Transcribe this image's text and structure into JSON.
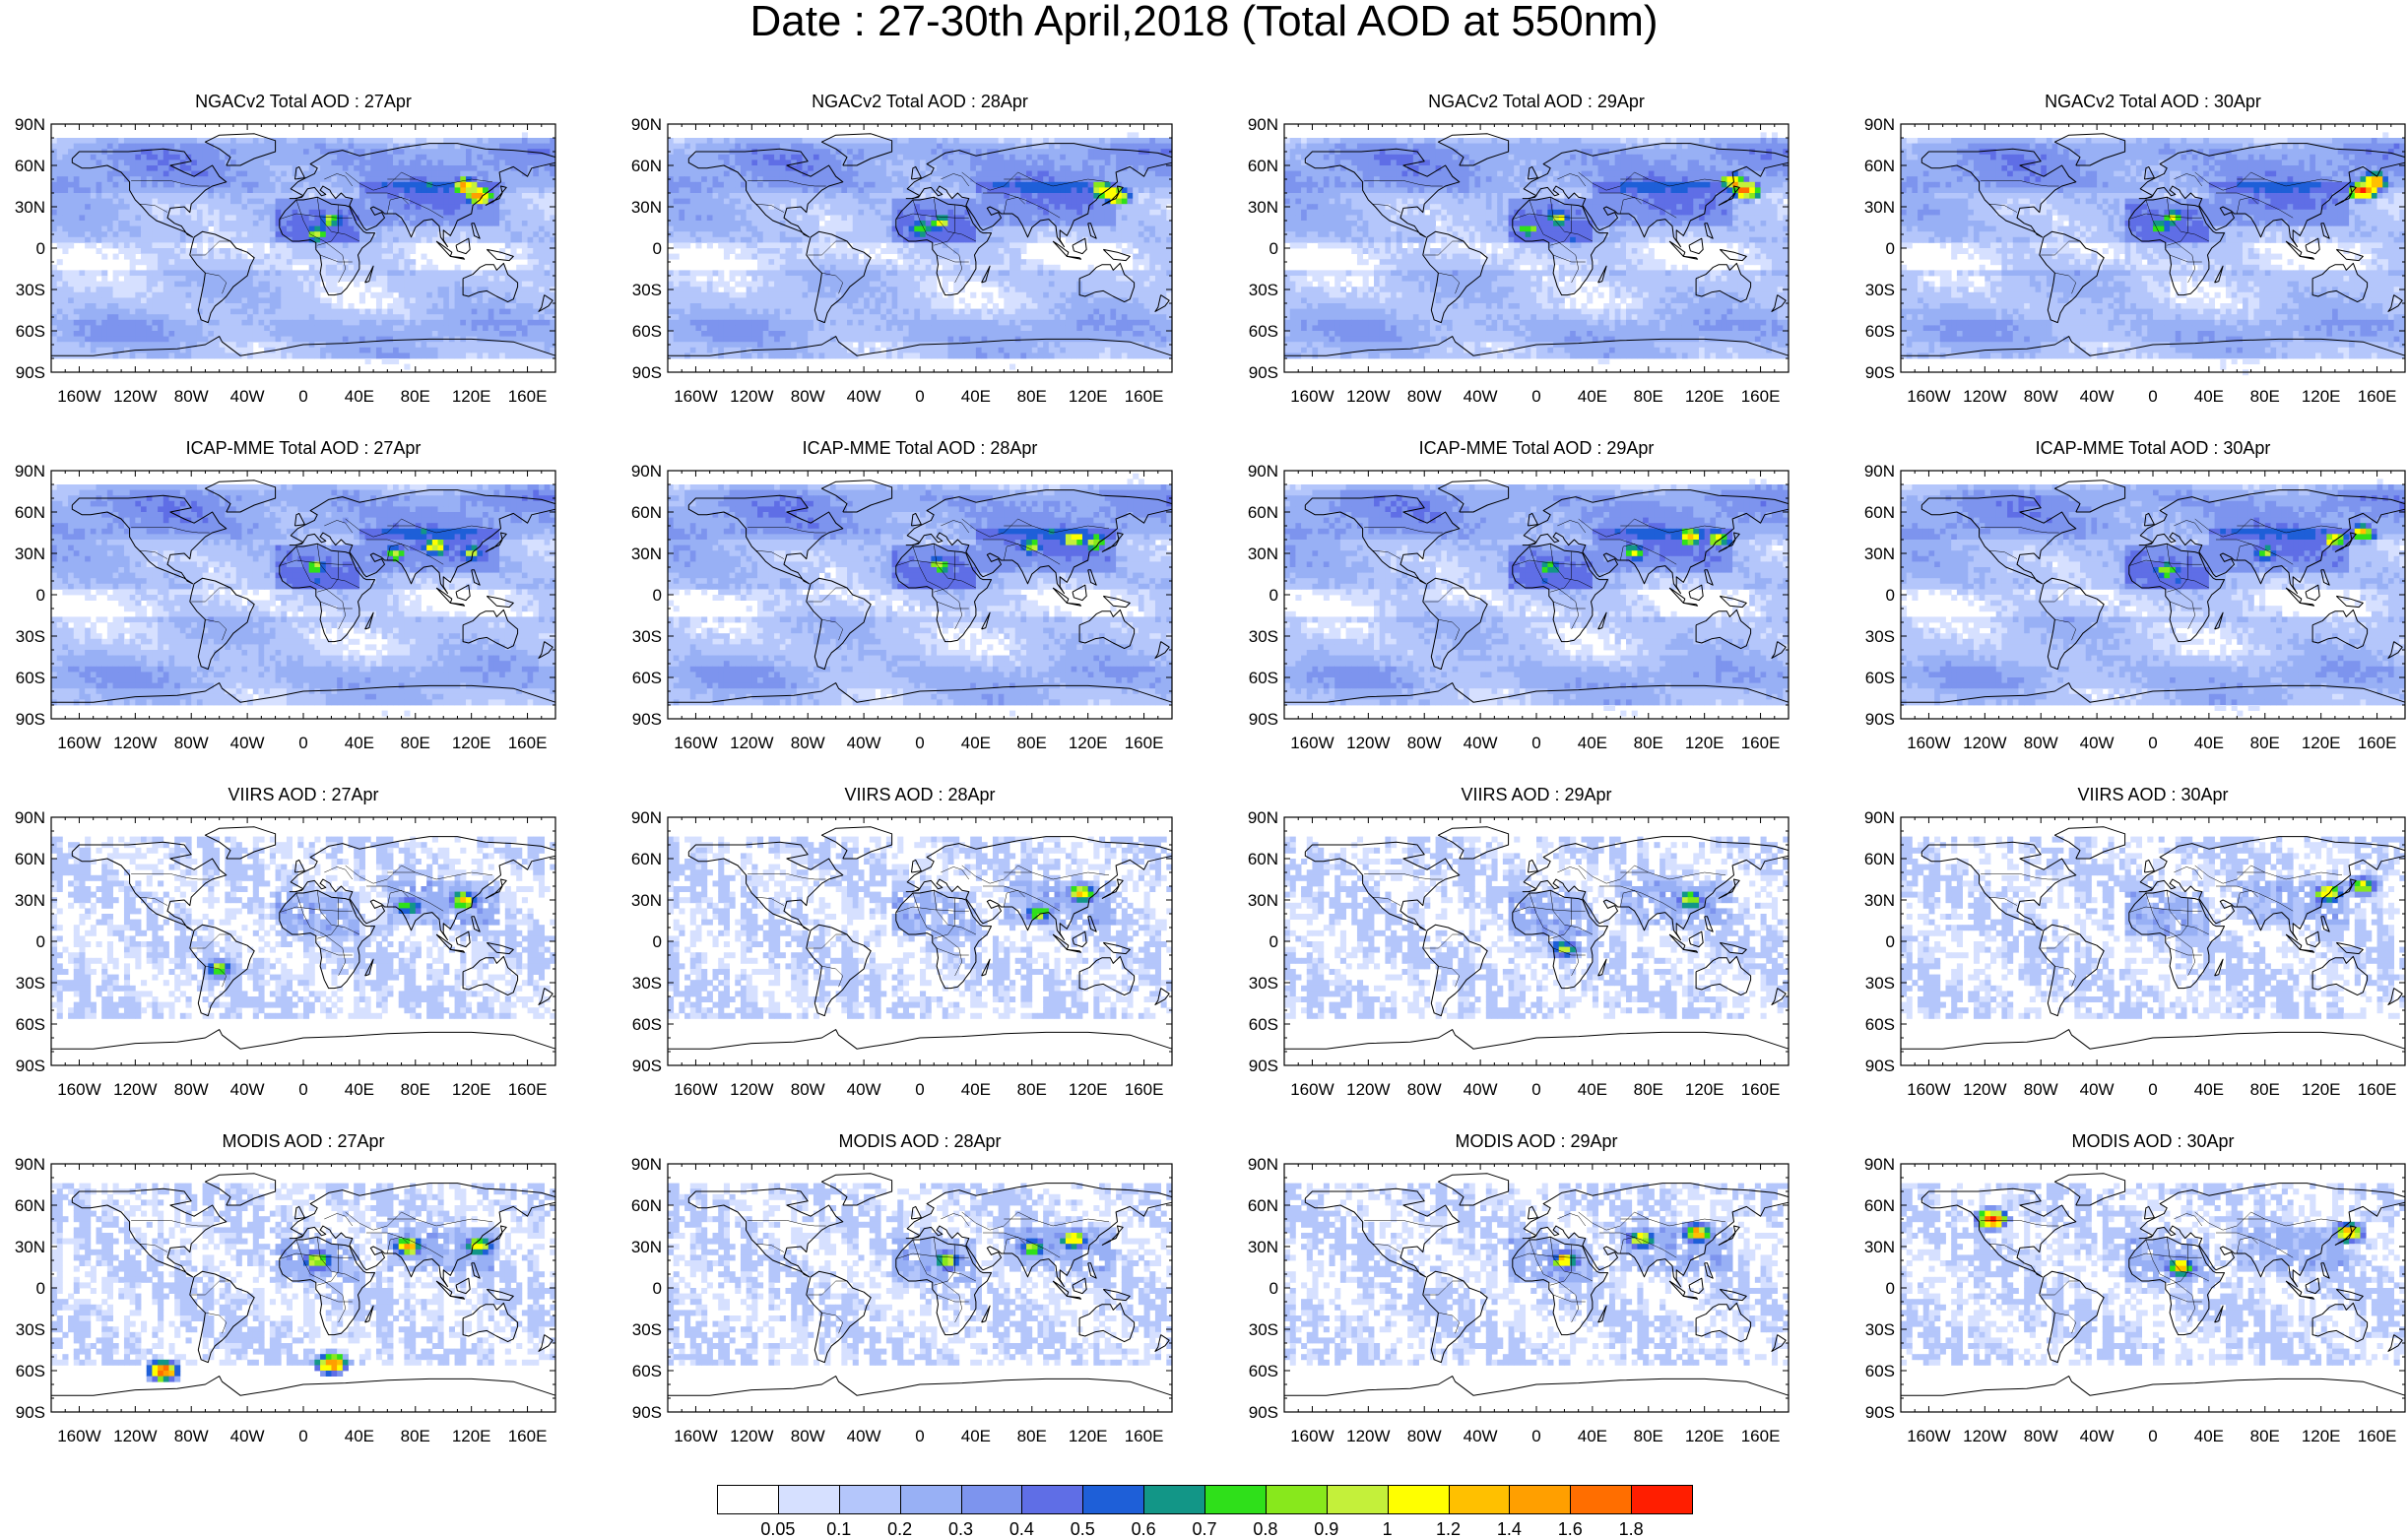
{
  "title": "Date : 27-30th April,2018 (Total AOD at 550nm)",
  "panels": [
    {
      "title": "NGACv2 Total AOD : 27Apr",
      "product": "NGACv2",
      "day": "27Apr",
      "style": "model",
      "hotspots": [
        [
          20,
          20,
          0.9
        ],
        [
          10,
          10,
          0.9
        ],
        [
          125,
          38,
          1.6
        ],
        [
          115,
          45,
          1.4
        ]
      ]
    },
    {
      "title": "NGACv2 Total AOD : 28Apr",
      "product": "NGACv2",
      "day": "28Apr",
      "style": "model",
      "hotspots": [
        [
          15,
          18,
          0.9
        ],
        [
          0,
          14,
          0.9
        ],
        [
          140,
          38,
          1.4
        ],
        [
          130,
          42,
          1.2
        ]
      ]
    },
    {
      "title": "NGACv2 Total AOD : 29Apr",
      "product": "NGACv2",
      "day": "29Apr",
      "style": "model",
      "hotspots": [
        [
          15,
          22,
          1.0
        ],
        [
          -5,
          14,
          0.9
        ],
        [
          150,
          42,
          1.6
        ],
        [
          140,
          48,
          1.4
        ]
      ]
    },
    {
      "title": "NGACv2 Total AOD : 30Apr",
      "product": "NGACv2",
      "day": "30Apr",
      "style": "model",
      "hotspots": [
        [
          15,
          22,
          0.9
        ],
        [
          5,
          14,
          0.9
        ],
        [
          150,
          42,
          1.8
        ],
        [
          158,
          48,
          1.6
        ]
      ]
    },
    {
      "title": "ICAP-MME Total AOD : 27Apr",
      "product": "ICAP-MME",
      "day": "27Apr",
      "style": "model",
      "hotspots": [
        [
          10,
          20,
          0.9
        ],
        [
          65,
          30,
          0.9
        ],
        [
          95,
          35,
          1.2
        ],
        [
          120,
          30,
          0.9
        ]
      ]
    },
    {
      "title": "ICAP-MME Total AOD : 28Apr",
      "product": "ICAP-MME",
      "day": "28Apr",
      "style": "model",
      "hotspots": [
        [
          15,
          22,
          0.9
        ],
        [
          80,
          35,
          0.9
        ],
        [
          110,
          40,
          1.2
        ],
        [
          125,
          38,
          1.0
        ]
      ]
    },
    {
      "title": "ICAP-MME Total AOD : 29Apr",
      "product": "ICAP-MME",
      "day": "29Apr",
      "style": "model",
      "hotspots": [
        [
          10,
          20,
          0.9
        ],
        [
          70,
          30,
          0.9
        ],
        [
          110,
          42,
          1.2
        ],
        [
          130,
          40,
          1.0
        ]
      ]
    },
    {
      "title": "ICAP-MME Total AOD : 30Apr",
      "product": "ICAP-MME",
      "day": "30Apr",
      "style": "model",
      "hotspots": [
        [
          10,
          18,
          0.9
        ],
        [
          80,
          30,
          0.9
        ],
        [
          130,
          40,
          1.2
        ],
        [
          150,
          45,
          1.1
        ]
      ]
    },
    {
      "title": "VIIRS AOD : 27Apr",
      "product": "VIIRS",
      "day": "27Apr",
      "style": "sat",
      "hotspots": [
        [
          115,
          30,
          1.2
        ],
        [
          75,
          25,
          0.9
        ],
        [
          -60,
          -20,
          0.9
        ]
      ]
    },
    {
      "title": "VIIRS AOD : 28Apr",
      "product": "VIIRS",
      "day": "28Apr",
      "style": "sat",
      "hotspots": [
        [
          115,
          35,
          1.2
        ],
        [
          85,
          20,
          0.9
        ]
      ]
    },
    {
      "title": "VIIRS AOD : 29Apr",
      "product": "VIIRS",
      "day": "29Apr",
      "style": "sat",
      "hotspots": [
        [
          110,
          30,
          1.0
        ],
        [
          20,
          -5,
          0.9
        ]
      ]
    },
    {
      "title": "VIIRS AOD : 30Apr",
      "product": "VIIRS",
      "day": "30Apr",
      "style": "sat",
      "hotspots": [
        [
          125,
          35,
          1.2
        ],
        [
          150,
          40,
          1.0
        ]
      ]
    },
    {
      "title": "MODIS AOD : 27Apr",
      "product": "MODIS",
      "day": "27Apr",
      "style": "sat",
      "hotspots": [
        [
          10,
          20,
          1.2
        ],
        [
          75,
          30,
          1.4
        ],
        [
          125,
          30,
          1.2
        ],
        [
          20,
          -55,
          1.8
        ],
        [
          -100,
          -60,
          1.8
        ]
      ]
    },
    {
      "title": "MODIS AOD : 28Apr",
      "product": "MODIS",
      "day": "28Apr",
      "style": "sat",
      "hotspots": [
        [
          20,
          20,
          1.0
        ],
        [
          80,
          30,
          1.0
        ],
        [
          110,
          35,
          1.2
        ]
      ]
    },
    {
      "title": "MODIS AOD : 29Apr",
      "product": "MODIS",
      "day": "29Apr",
      "style": "sat",
      "hotspots": [
        [
          20,
          20,
          1.2
        ],
        [
          75,
          35,
          1.2
        ],
        [
          115,
          40,
          1.4
        ]
      ]
    },
    {
      "title": "MODIS AOD : 30Apr",
      "product": "MODIS",
      "day": "30Apr",
      "style": "sat",
      "hotspots": [
        [
          20,
          15,
          1.2
        ],
        [
          140,
          40,
          1.4
        ],
        [
          -115,
          50,
          1.8
        ]
      ]
    }
  ],
  "axes": {
    "lat_labels": [
      "90N",
      "60N",
      "30N",
      "0",
      "30S",
      "60S",
      "90S"
    ],
    "lat_values": [
      90,
      60,
      30,
      0,
      -30,
      -60,
      -90
    ],
    "lon_labels": [
      "160W",
      "120W",
      "80W",
      "40W",
      "0",
      "40E",
      "80E",
      "120E",
      "160E"
    ],
    "lon_values": [
      -160,
      -120,
      -80,
      -40,
      0,
      40,
      80,
      120,
      160
    ],
    "lon_range": [
      -180,
      180
    ],
    "lat_range": [
      -90,
      90
    ]
  },
  "colorbar": {
    "labels": [
      "0.05",
      "0.1",
      "0.2",
      "0.3",
      "0.4",
      "0.5",
      "0.6",
      "0.7",
      "0.8",
      "0.9",
      "1",
      "1.2",
      "1.4",
      "1.6",
      "1.8"
    ],
    "thresholds": [
      0.05,
      0.1,
      0.2,
      0.3,
      0.4,
      0.5,
      0.6,
      0.7,
      0.8,
      0.9,
      1.0,
      1.2,
      1.4,
      1.6,
      1.8
    ],
    "colors": [
      "#ffffff",
      "#d6e0ff",
      "#b4c6fb",
      "#98b0f5",
      "#7d94ee",
      "#5f6ee6",
      "#1e5fd8",
      "#129687",
      "#2fe01a",
      "#88e81c",
      "#c4f03a",
      "#ffff00",
      "#ffc000",
      "#ff9f00",
      "#ff6e00",
      "#ff1e00"
    ]
  }
}
